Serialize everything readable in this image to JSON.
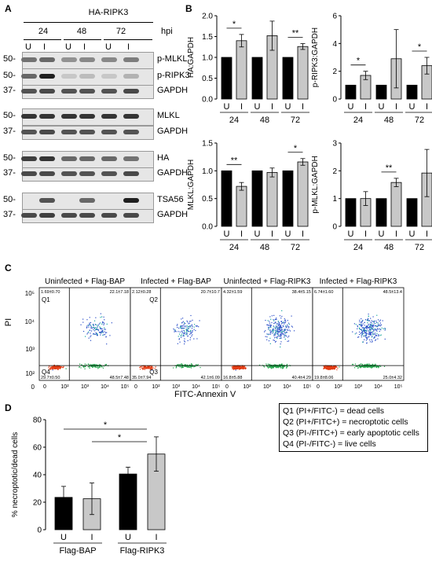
{
  "panel_labels": {
    "A": "A",
    "B": "B",
    "C": "C",
    "D": "D"
  },
  "panel_a": {
    "title": "HA-RIPK3",
    "hpi_label": "hpi",
    "timepoints": [
      "24",
      "48",
      "72"
    ],
    "lanes": [
      "U",
      "I",
      "U",
      "I",
      "U",
      "I"
    ],
    "blots": [
      {
        "label": "p-MLKL",
        "marker": "50"
      },
      {
        "label": "p-RIPK3",
        "marker": "50"
      },
      {
        "label": "GAPDH",
        "marker": "37"
      },
      {
        "label": "MLKL",
        "marker": "50"
      },
      {
        "label": "GAPDH",
        "marker": "37"
      },
      {
        "label": "HA",
        "marker": "50"
      },
      {
        "label": "GAPDH",
        "marker": "37"
      },
      {
        "label": "TSA56",
        "marker": "50"
      },
      {
        "label": "GAPDH",
        "marker": "37"
      }
    ]
  },
  "chart_data": [
    {
      "type": "bar",
      "panel": "B",
      "ylabel": "HA:GAPDH",
      "ylim": [
        0,
        2.0
      ],
      "yticks": [
        "0.0",
        "0.5",
        "1.0",
        "1.5",
        "2.0"
      ],
      "groups": [
        "24",
        "48",
        "72"
      ],
      "bar_labels": [
        "U",
        "I"
      ],
      "series": [
        {
          "name": "U",
          "values": [
            1.0,
            1.0,
            1.0
          ],
          "errors": [
            0,
            0,
            0
          ],
          "color": "#000000"
        },
        {
          "name": "I",
          "values": [
            1.4,
            1.52,
            1.26
          ],
          "errors": [
            0.15,
            0.35,
            0.07
          ],
          "color": "#c8c8c8"
        }
      ],
      "significance": [
        {
          "group": "24",
          "mark": "*"
        },
        {
          "group": "72",
          "mark": "**"
        }
      ]
    },
    {
      "type": "bar",
      "panel": "B",
      "ylabel": "p-RIPK3:GAPDH",
      "ylim": [
        0,
        6
      ],
      "yticks": [
        "0",
        "2",
        "4",
        "6"
      ],
      "groups": [
        "24",
        "48",
        "72"
      ],
      "bar_labels": [
        "U",
        "I"
      ],
      "series": [
        {
          "name": "U",
          "values": [
            1.0,
            1.0,
            1.0
          ],
          "errors": [
            0,
            0,
            0
          ],
          "color": "#000000"
        },
        {
          "name": "I",
          "values": [
            1.7,
            2.9,
            2.4
          ],
          "errors": [
            0.3,
            2.1,
            0.6
          ],
          "color": "#c8c8c8"
        }
      ],
      "significance": [
        {
          "group": "24",
          "mark": "*"
        },
        {
          "group": "72",
          "mark": "*"
        }
      ]
    },
    {
      "type": "bar",
      "panel": "B",
      "ylabel": "MLKL:GAPDH",
      "ylim": [
        0,
        1.5
      ],
      "yticks": [
        "0.0",
        "0.5",
        "1.0",
        "1.5"
      ],
      "groups": [
        "24",
        "48",
        "72"
      ],
      "bar_labels": [
        "U",
        "I"
      ],
      "series": [
        {
          "name": "U",
          "values": [
            1.0,
            1.0,
            1.0
          ],
          "errors": [
            0,
            0,
            0
          ],
          "color": "#000000"
        },
        {
          "name": "I",
          "values": [
            0.72,
            0.97,
            1.16
          ],
          "errors": [
            0.07,
            0.08,
            0.06
          ],
          "color": "#c8c8c8"
        }
      ],
      "significance": [
        {
          "group": "24",
          "mark": "**"
        },
        {
          "group": "72",
          "mark": "*"
        }
      ]
    },
    {
      "type": "bar",
      "panel": "B",
      "ylabel": "p-MLKL:GAPDH",
      "ylim": [
        0,
        3
      ],
      "yticks": [
        "0",
        "1",
        "2",
        "3"
      ],
      "groups": [
        "24",
        "48",
        "72"
      ],
      "bar_labels": [
        "U",
        "I"
      ],
      "series": [
        {
          "name": "U",
          "values": [
            1.0,
            1.0,
            1.0
          ],
          "errors": [
            0,
            0,
            0
          ],
          "color": "#000000"
        },
        {
          "name": "I",
          "values": [
            1.0,
            1.58,
            1.92
          ],
          "errors": [
            0.25,
            0.15,
            0.85
          ],
          "color": "#c8c8c8"
        }
      ],
      "significance": [
        {
          "group": "48",
          "mark": "**"
        }
      ]
    },
    {
      "type": "bar",
      "panel": "D",
      "ylabel": "% necroptotic/dead cells",
      "ylim": [
        0,
        80
      ],
      "yticks": [
        "0",
        "20",
        "40",
        "60",
        "80"
      ],
      "groups": [
        "Flag-BAP",
        "Flag-RIPK3"
      ],
      "bar_labels": [
        "U",
        "I"
      ],
      "series": [
        {
          "name": "U",
          "values": [
            23.5,
            40.5
          ],
          "errors": [
            8,
            5
          ],
          "color": "#000000"
        },
        {
          "name": "I",
          "values": [
            22.5,
            55
          ],
          "errors": [
            11.5,
            12.5
          ],
          "color": "#c8c8c8"
        }
      ],
      "significance": [
        {
          "mark": "*"
        },
        {
          "mark": "*"
        }
      ]
    }
  ],
  "panel_c": {
    "xlabel": "FITC-Annexin V",
    "ylabel": "PI",
    "yticks": [
      "10⁵",
      "10⁴",
      "10³",
      "10²",
      "0"
    ],
    "xticks": [
      "0",
      "10²",
      "10³",
      "10⁴",
      "10⁵"
    ],
    "plots": [
      {
        "title": "Uninfected + Flag-BAP",
        "q1": "1.69±0.70",
        "q2": "22.1±7.18",
        "q3": "48.5±7.48",
        "q4": "29.7±0.50",
        "density": 0.35
      },
      {
        "title": "Infected + Flag-BAP",
        "q1": "2.12±0.28",
        "q2": "20.7±10.7",
        "q3": "42.1±6.09",
        "q4": "35.0±7.94",
        "density": 0.3
      },
      {
        "title": "Uninfected + Flag-RIPK3",
        "q1": "4.32±1.59",
        "q2": "38.4±5.15",
        "q3": "40.4±4.29",
        "q4": "16.8±5.88",
        "density": 0.9
      },
      {
        "title": "Infected + Flag-RIPK3",
        "q1": "6.74±1.60",
        "q2": "48.5±13.4",
        "q3": "25.0±4.32",
        "q4": "19.8±8.06",
        "density": 1.0
      }
    ],
    "quadrant_names": [
      "Q1",
      "Q2",
      "Q3",
      "Q4"
    ]
  },
  "legend": {
    "lines": [
      "Q1 (PI+/FITC-) = dead cells",
      "Q2 (PI+/FITC+) = necroptotic cells",
      "Q3 (PI-/FITC+) = early apoptotic cells",
      "Q4 (PI-/FITC-) = live cells"
    ]
  },
  "colors": {
    "black_bar": "#000000",
    "gray_bar": "#c8c8c8"
  }
}
